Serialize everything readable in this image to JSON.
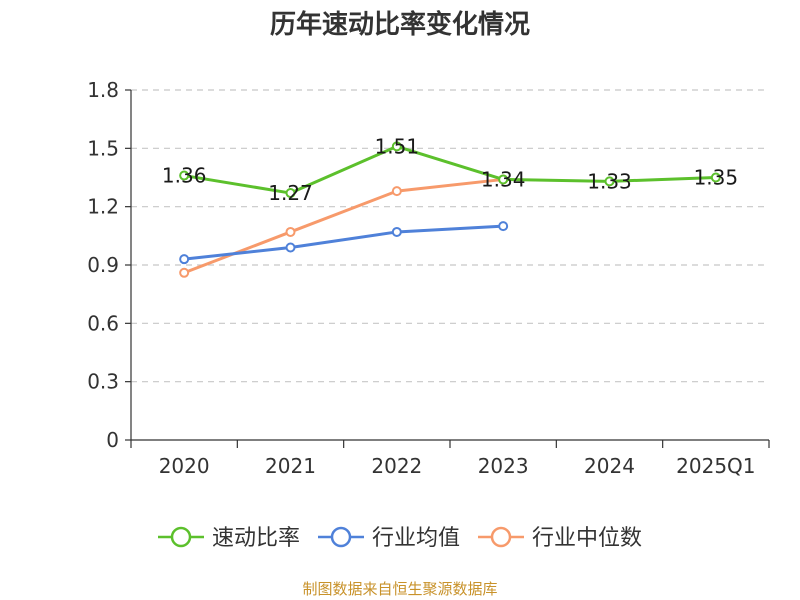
{
  "chart_data": {
    "type": "line",
    "title": "历年速动比率变化情况",
    "categories": [
      "2020",
      "2021",
      "2022",
      "2023",
      "2024",
      "2025Q1"
    ],
    "ylim": [
      0,
      1.8
    ],
    "yticks": [
      "0",
      "0.3",
      "0.6",
      "0.9",
      "1.2",
      "1.5",
      "1.8"
    ],
    "grid": true,
    "legend_position": "bottom",
    "series": [
      {
        "name": "速动比率",
        "color": "#5cc02c",
        "values": [
          1.36,
          1.27,
          1.51,
          1.34,
          1.33,
          1.35
        ],
        "labels": [
          "1.36",
          "1.27",
          "1.51",
          "1.34",
          "1.33",
          "1.35"
        ]
      },
      {
        "name": "行业均值",
        "color": "#4f81d9",
        "values": [
          0.93,
          0.99,
          1.07,
          1.1,
          null,
          null
        ]
      },
      {
        "name": "行业中位数",
        "color": "#f79a6b",
        "values": [
          0.86,
          1.07,
          1.28,
          1.34,
          null,
          null
        ]
      }
    ]
  },
  "source_text": "制图数据来自恒生聚源数据库"
}
